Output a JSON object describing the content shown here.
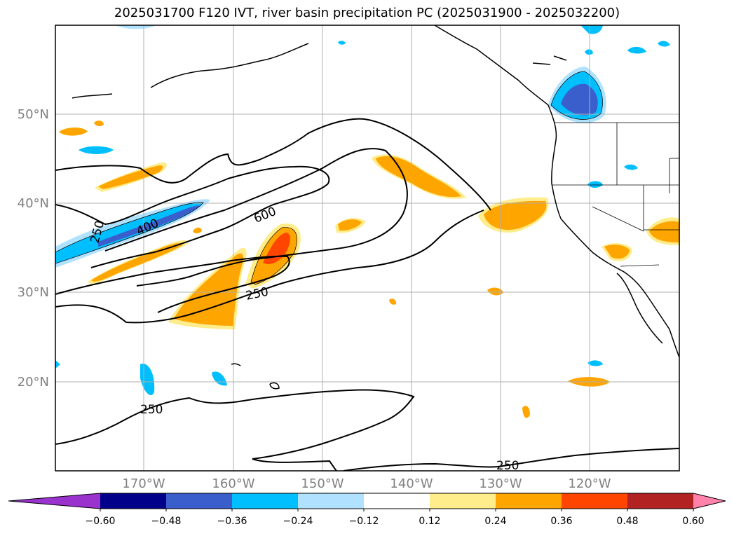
{
  "title": "2025031700 F120 IVT, river basin precipitation PC (2025031900 - 2025032200)",
  "axes": {
    "lat_labels": [
      "50°N",
      "40°N",
      "30°N",
      "20°N"
    ],
    "lon_labels": [
      "170°W",
      "160°W",
      "150°W",
      "140°W",
      "130°W",
      "120°W"
    ]
  },
  "ivt_contour_labels": [
    "250",
    "400",
    "600",
    "250",
    "250",
    "250"
  ],
  "colorbar": {
    "ticks": [
      "−0.60",
      "−0.48",
      "−0.36",
      "−0.24",
      "−0.12",
      "0.12",
      "0.24",
      "0.36",
      "0.48",
      "0.60"
    ],
    "colors": [
      "#9a32cd",
      "#00008b",
      "#3a5fcd",
      "#00bfff",
      "#b0e2ff",
      "#ffffff",
      "#ffec8b",
      "#ffa500",
      "#ff4500",
      "#b22222",
      "#ff82ab"
    ]
  }
}
